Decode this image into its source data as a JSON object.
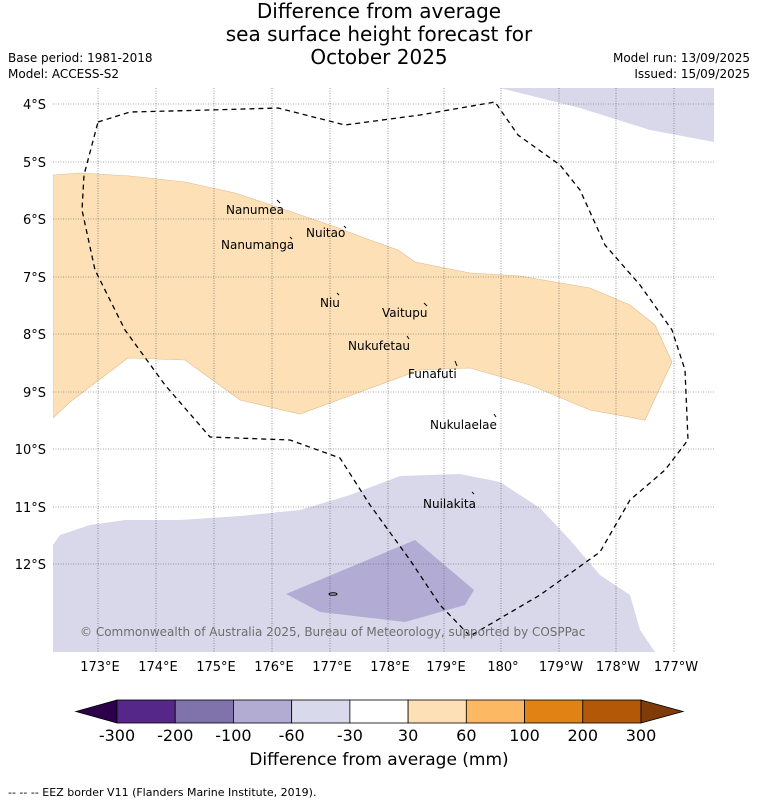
{
  "header": {
    "title_lines": [
      "Difference from average",
      "sea surface height forecast for",
      "October 2025"
    ],
    "base_period": "Base period: 1981-2018",
    "model": "Model: ACCESS-S2",
    "model_run": "Model run: 13/09/2025",
    "issued": "Issued: 15/09/2025"
  },
  "map": {
    "lat_labels": [
      "4°S",
      "5°S",
      "6°S",
      "7°S",
      "8°S",
      "9°S",
      "10°S",
      "11°S",
      "12°S"
    ],
    "lon_labels": [
      "173°E",
      "174°E",
      "175°E",
      "176°E",
      "177°E",
      "178°E",
      "179°E",
      "180°",
      "179°W",
      "178°W",
      "177°W"
    ],
    "places": [
      {
        "name": "Nanumea"
      },
      {
        "name": "Nuitao"
      },
      {
        "name": "Nanumanga"
      },
      {
        "name": "Niu"
      },
      {
        "name": "Vaitupu"
      },
      {
        "name": "Nukufetau"
      },
      {
        "name": "Funafuti"
      },
      {
        "name": "Nukulaelae"
      },
      {
        "name": "Nuilakita"
      }
    ],
    "copyright": "© Commonwealth of Australia 2025, Bureau of Meteorology, supported by COSPPac",
    "fill_colors": {
      "pos_30_60": "#fde0b6",
      "neg_30_60": "#d8d8ea",
      "neg_60_100": "#b2abd3"
    }
  },
  "colorbar": {
    "ticks": [
      "-300",
      "-200",
      "-100",
      "-60",
      "-30",
      "30",
      "60",
      "100",
      "200",
      "300"
    ],
    "colors": [
      "#2d004b",
      "#542788",
      "#8073ac",
      "#b2abd2",
      "#d8daeb",
      "#ffffff",
      "#fee0b6",
      "#fdb863",
      "#e08214",
      "#b35806",
      "#7f3b08"
    ],
    "title": "Difference from average (mm)"
  },
  "footer": {
    "legend": "--  --  -- EEZ border V11 (Flanders Marine Institute, 2019)."
  }
}
